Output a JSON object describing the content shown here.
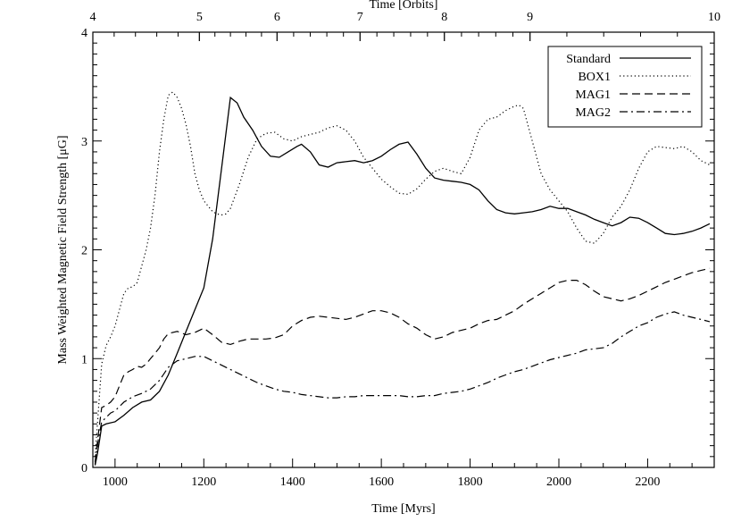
{
  "chart_data": {
    "type": "line",
    "xlabel": "Time [Myrs]",
    "ylabel": "Mass Weighted Magnetic Field Strength [μG]",
    "top_xlabel": "Time [Orbits]",
    "xlim": [
      950,
      2350
    ],
    "ylim": [
      0,
      4
    ],
    "x_ticks": [
      1000,
      1200,
      1400,
      1600,
      1800,
      2000,
      2200
    ],
    "y_ticks": [
      0,
      1,
      2,
      3,
      4
    ],
    "top_ticks": [
      {
        "value": 4,
        "x": 950
      },
      {
        "value": 5,
        "x": 1190
      },
      {
        "value": 6,
        "x": 1365
      },
      {
        "value": 7,
        "x": 1552
      },
      {
        "value": 8,
        "x": 1742
      },
      {
        "value": 9,
        "x": 1935
      },
      {
        "value": 10,
        "x": 2350
      }
    ],
    "legend_position": "top-right",
    "series": [
      {
        "name": "Standard",
        "dash": "solid",
        "x": [
          955,
          960,
          965,
          970,
          980,
          1000,
          1020,
          1040,
          1060,
          1080,
          1100,
          1120,
          1140,
          1160,
          1180,
          1200,
          1220,
          1240,
          1260,
          1275,
          1290,
          1310,
          1330,
          1350,
          1370,
          1390,
          1410,
          1420,
          1440,
          1460,
          1480,
          1500,
          1520,
          1540,
          1560,
          1580,
          1600,
          1620,
          1640,
          1660,
          1680,
          1700,
          1720,
          1740,
          1760,
          1780,
          1800,
          1820,
          1840,
          1860,
          1880,
          1900,
          1920,
          1940,
          1960,
          1980,
          2000,
          2020,
          2040,
          2060,
          2080,
          2100,
          2120,
          2140,
          2160,
          2180,
          2200,
          2220,
          2240,
          2260,
          2280,
          2300,
          2320,
          2340
        ],
        "y": [
          0.02,
          0.12,
          0.25,
          0.38,
          0.4,
          0.42,
          0.48,
          0.55,
          0.6,
          0.62,
          0.7,
          0.85,
          1.05,
          1.25,
          1.45,
          1.65,
          2.1,
          2.75,
          3.4,
          3.35,
          3.22,
          3.1,
          2.95,
          2.86,
          2.85,
          2.9,
          2.95,
          2.97,
          2.9,
          2.78,
          2.76,
          2.8,
          2.81,
          2.82,
          2.8,
          2.82,
          2.86,
          2.92,
          2.97,
          2.99,
          2.88,
          2.75,
          2.66,
          2.64,
          2.63,
          2.62,
          2.6,
          2.55,
          2.45,
          2.37,
          2.34,
          2.33,
          2.34,
          2.35,
          2.37,
          2.4,
          2.38,
          2.38,
          2.35,
          2.32,
          2.28,
          2.25,
          2.22,
          2.25,
          2.3,
          2.29,
          2.25,
          2.2,
          2.15,
          2.14,
          2.15,
          2.17,
          2.2,
          2.24
        ]
      },
      {
        "name": "BOX1",
        "dash": "dotted",
        "x": [
          955,
          962,
          970,
          980,
          990,
          1000,
          1010,
          1020,
          1030,
          1040,
          1050,
          1060,
          1070,
          1080,
          1090,
          1100,
          1110,
          1120,
          1130,
          1140,
          1150,
          1160,
          1170,
          1180,
          1190,
          1200,
          1210,
          1220,
          1230,
          1240,
          1250,
          1260,
          1280,
          1300,
          1320,
          1340,
          1360,
          1380,
          1400,
          1420,
          1440,
          1460,
          1480,
          1500,
          1520,
          1540,
          1560,
          1580,
          1600,
          1620,
          1640,
          1660,
          1680,
          1700,
          1720,
          1740,
          1760,
          1780,
          1800,
          1820,
          1840,
          1860,
          1880,
          1900,
          1910,
          1920,
          1940,
          1960,
          1980,
          2000,
          2020,
          2040,
          2060,
          2080,
          2100,
          2120,
          2140,
          2160,
          2180,
          2200,
          2220,
          2240,
          2260,
          2280,
          2300,
          2320,
          2340
        ],
        "y": [
          0.1,
          0.5,
          0.95,
          1.12,
          1.2,
          1.3,
          1.45,
          1.6,
          1.65,
          1.66,
          1.7,
          1.85,
          2.0,
          2.2,
          2.5,
          2.9,
          3.2,
          3.42,
          3.45,
          3.4,
          3.3,
          3.15,
          2.95,
          2.7,
          2.55,
          2.45,
          2.4,
          2.35,
          2.33,
          2.32,
          2.33,
          2.38,
          2.6,
          2.85,
          3.02,
          3.07,
          3.08,
          3.02,
          3.0,
          3.04,
          3.06,
          3.08,
          3.12,
          3.14,
          3.1,
          3.0,
          2.85,
          2.75,
          2.65,
          2.58,
          2.52,
          2.51,
          2.56,
          2.65,
          2.72,
          2.75,
          2.72,
          2.7,
          2.85,
          3.1,
          3.2,
          3.22,
          3.28,
          3.32,
          3.33,
          3.3,
          3.0,
          2.7,
          2.55,
          2.45,
          2.35,
          2.2,
          2.08,
          2.06,
          2.15,
          2.3,
          2.4,
          2.55,
          2.75,
          2.9,
          2.95,
          2.94,
          2.93,
          2.95,
          2.9,
          2.82,
          2.78
        ]
      },
      {
        "name": "MAG1",
        "dash": "dashed",
        "x": [
          955,
          962,
          970,
          980,
          990,
          1000,
          1010,
          1020,
          1030,
          1040,
          1050,
          1060,
          1070,
          1080,
          1090,
          1100,
          1110,
          1120,
          1140,
          1160,
          1180,
          1200,
          1220,
          1240,
          1260,
          1280,
          1300,
          1320,
          1340,
          1360,
          1380,
          1400,
          1420,
          1440,
          1460,
          1480,
          1500,
          1520,
          1540,
          1560,
          1580,
          1600,
          1620,
          1640,
          1660,
          1680,
          1700,
          1720,
          1740,
          1760,
          1780,
          1800,
          1820,
          1840,
          1860,
          1880,
          1900,
          1920,
          1940,
          1960,
          1980,
          2000,
          2020,
          2040,
          2060,
          2080,
          2100,
          2120,
          2140,
          2160,
          2180,
          2200,
          2220,
          2240,
          2260,
          2280,
          2300,
          2320,
          2340
        ],
        "y": [
          0.05,
          0.3,
          0.55,
          0.57,
          0.6,
          0.65,
          0.75,
          0.85,
          0.88,
          0.9,
          0.93,
          0.92,
          0.95,
          1.0,
          1.05,
          1.1,
          1.18,
          1.23,
          1.25,
          1.22,
          1.24,
          1.28,
          1.22,
          1.15,
          1.13,
          1.16,
          1.18,
          1.18,
          1.18,
          1.19,
          1.22,
          1.3,
          1.35,
          1.38,
          1.39,
          1.38,
          1.37,
          1.36,
          1.38,
          1.41,
          1.44,
          1.44,
          1.42,
          1.38,
          1.32,
          1.28,
          1.22,
          1.18,
          1.2,
          1.24,
          1.26,
          1.28,
          1.32,
          1.35,
          1.36,
          1.4,
          1.44,
          1.5,
          1.55,
          1.6,
          1.65,
          1.7,
          1.72,
          1.72,
          1.68,
          1.62,
          1.57,
          1.55,
          1.53,
          1.55,
          1.58,
          1.62,
          1.66,
          1.7,
          1.73,
          1.76,
          1.79,
          1.81,
          1.83
        ]
      },
      {
        "name": "MAG2",
        "dash": "dashdot",
        "x": [
          955,
          962,
          970,
          980,
          990,
          1000,
          1020,
          1040,
          1060,
          1080,
          1100,
          1120,
          1140,
          1160,
          1180,
          1200,
          1220,
          1240,
          1260,
          1280,
          1300,
          1320,
          1340,
          1360,
          1380,
          1400,
          1420,
          1440,
          1460,
          1480,
          1500,
          1520,
          1540,
          1560,
          1580,
          1600,
          1620,
          1640,
          1660,
          1680,
          1700,
          1720,
          1740,
          1760,
          1780,
          1800,
          1820,
          1840,
          1860,
          1880,
          1900,
          1920,
          1940,
          1960,
          1980,
          2000,
          2020,
          2040,
          2060,
          2080,
          2100,
          2120,
          2140,
          2160,
          2180,
          2200,
          2220,
          2240,
          2260,
          2280,
          2300,
          2320,
          2340
        ],
        "y": [
          0.03,
          0.25,
          0.42,
          0.46,
          0.5,
          0.52,
          0.6,
          0.65,
          0.68,
          0.72,
          0.8,
          0.92,
          0.98,
          1.0,
          1.02,
          1.02,
          0.98,
          0.94,
          0.9,
          0.86,
          0.82,
          0.78,
          0.75,
          0.72,
          0.7,
          0.69,
          0.67,
          0.66,
          0.65,
          0.64,
          0.64,
          0.65,
          0.65,
          0.66,
          0.66,
          0.66,
          0.66,
          0.66,
          0.65,
          0.65,
          0.66,
          0.66,
          0.68,
          0.69,
          0.7,
          0.72,
          0.75,
          0.78,
          0.82,
          0.85,
          0.88,
          0.9,
          0.93,
          0.96,
          0.99,
          1.01,
          1.03,
          1.05,
          1.08,
          1.09,
          1.1,
          1.14,
          1.2,
          1.25,
          1.3,
          1.33,
          1.38,
          1.41,
          1.43,
          1.4,
          1.38,
          1.36,
          1.34
        ]
      }
    ]
  }
}
